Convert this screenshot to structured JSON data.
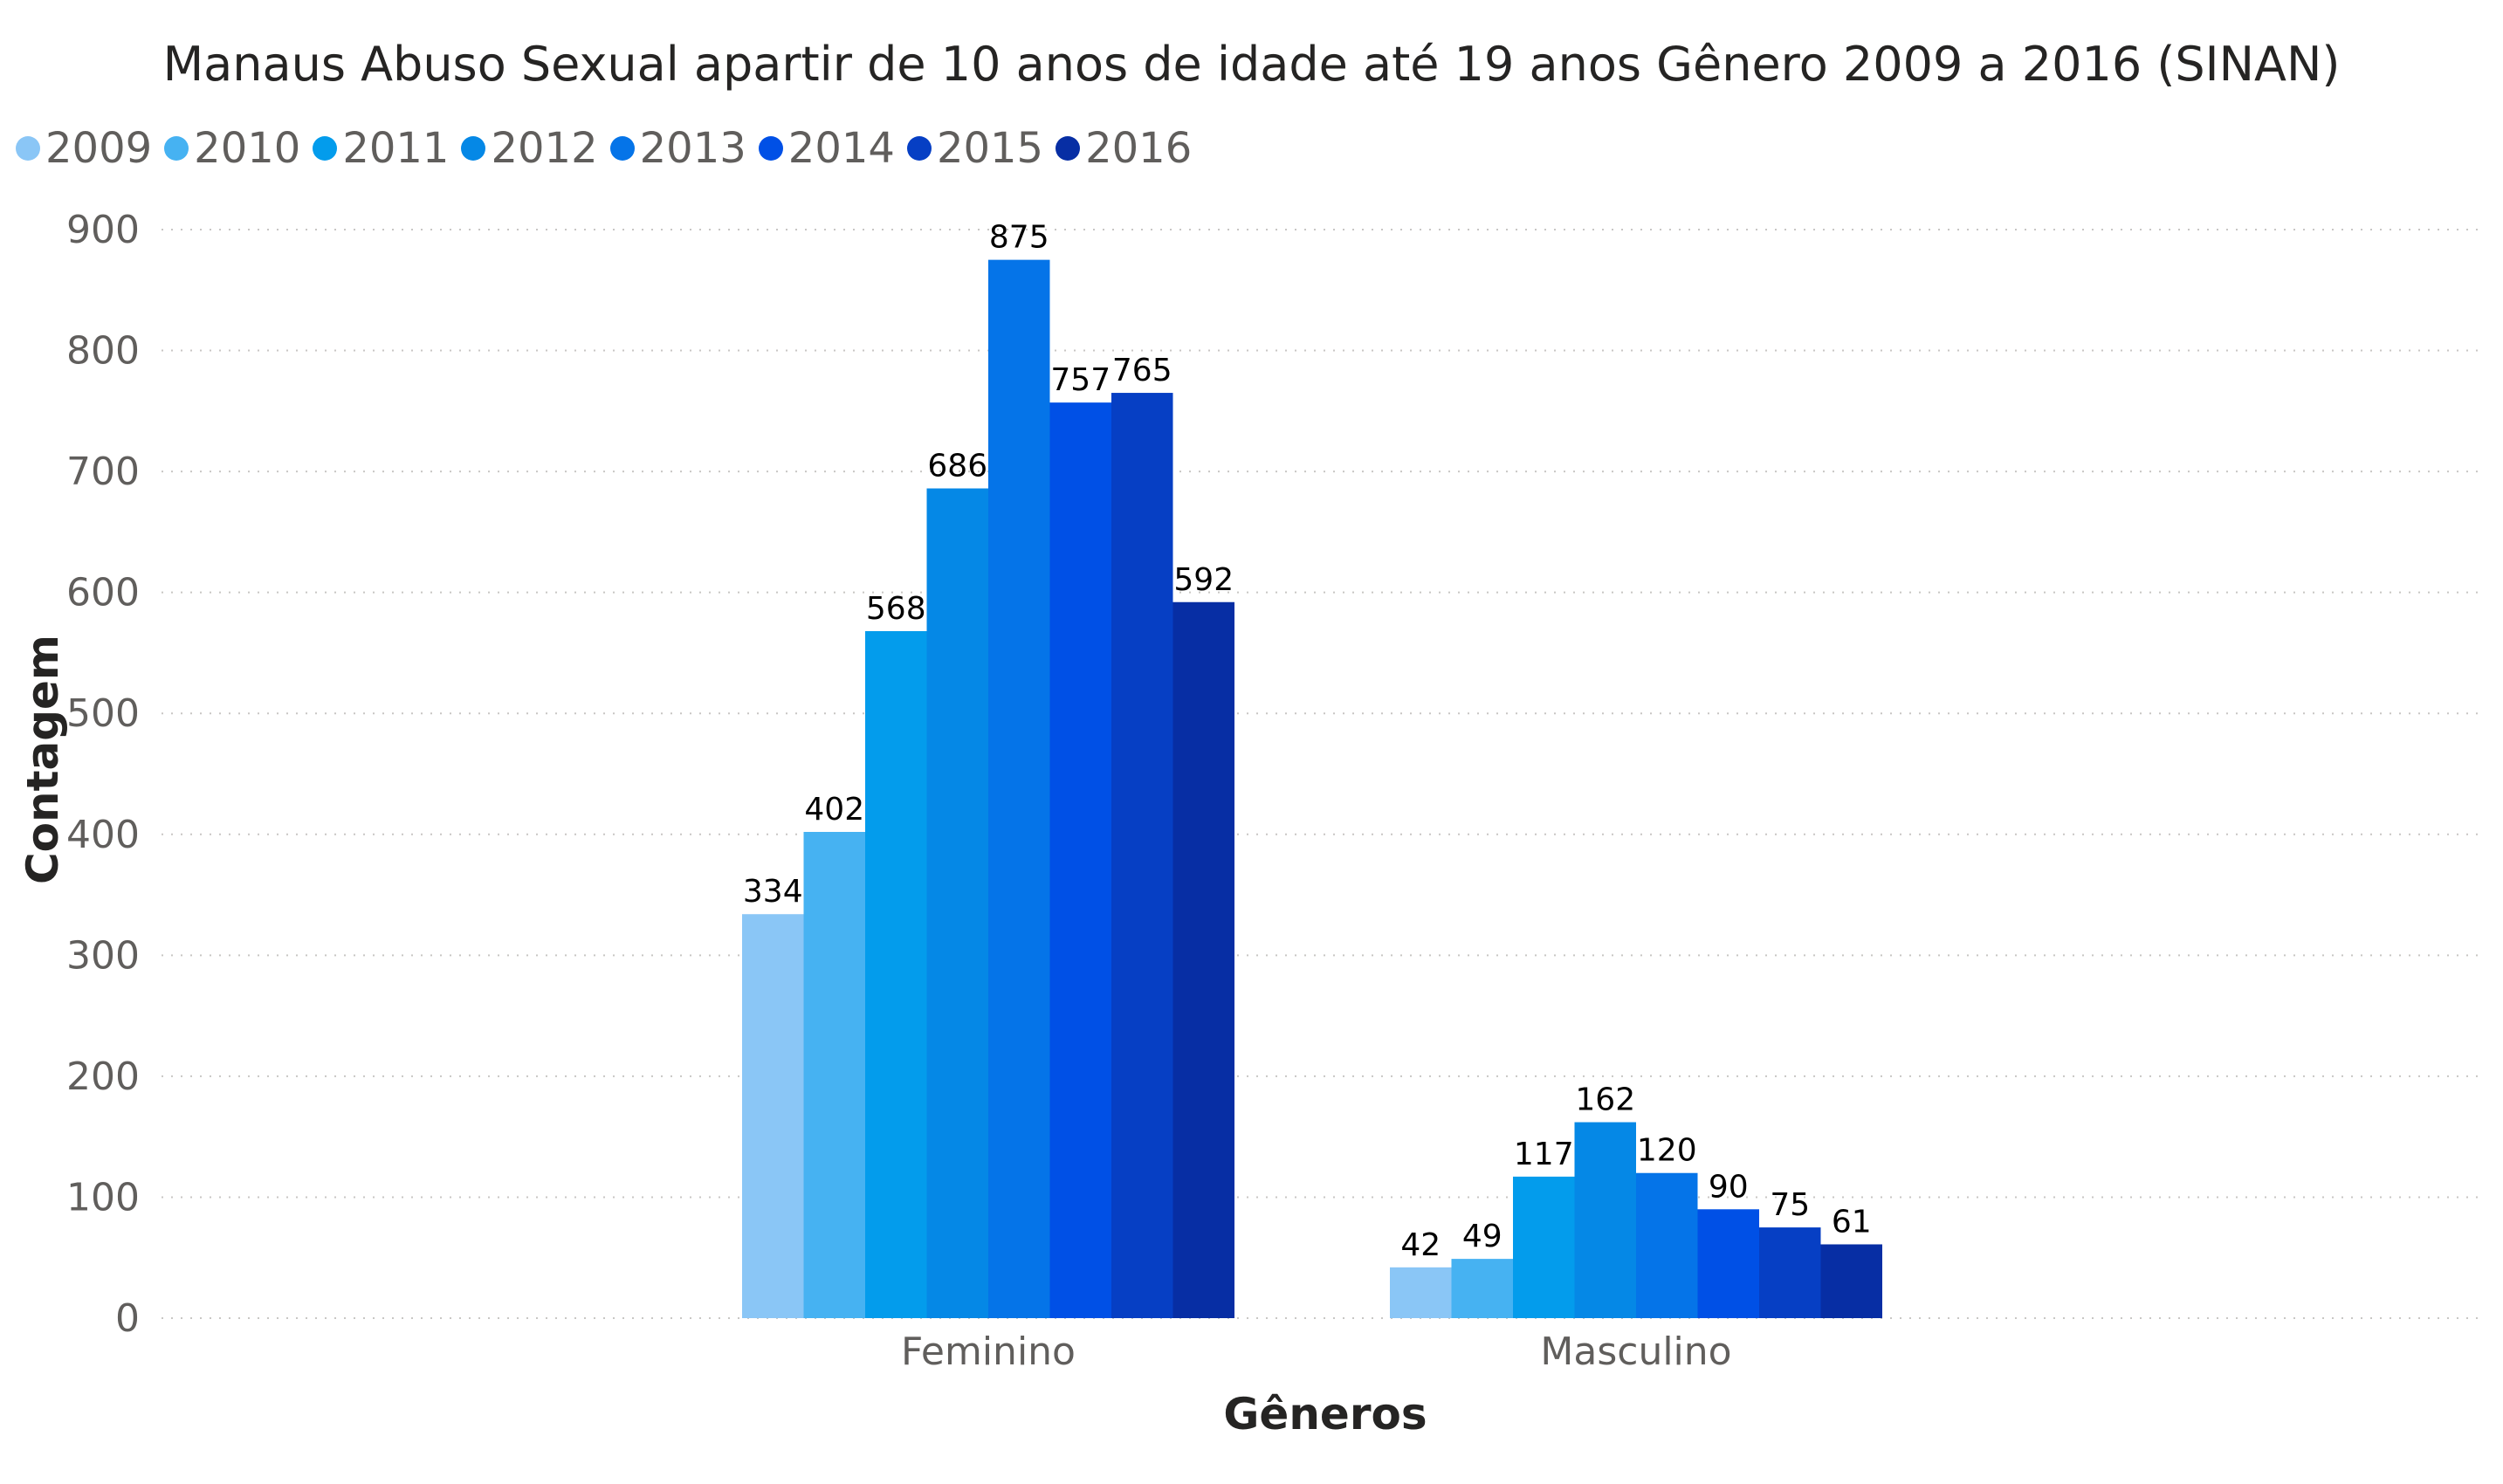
{
  "chart_data": {
    "type": "bar",
    "title": "Manaus Abuso Sexual apartir de 10 anos de idade até 19 anos Gênero 2009 a 2016 (SINAN)",
    "xlabel": "Gêneros",
    "ylabel": "Contagem",
    "categories": [
      "Feminino",
      "Masculino"
    ],
    "ylim": [
      0,
      900
    ],
    "yticks": [
      "0",
      "100",
      "200",
      "300",
      "400",
      "500",
      "600",
      "700",
      "800",
      "900"
    ],
    "grid": "horizontal dotted",
    "legend_position": "top-left",
    "series": [
      {
        "name": "2009",
        "color": "#8ac6f6",
        "values": [
          334,
          42
        ]
      },
      {
        "name": "2010",
        "color": "#46b2f2",
        "values": [
          402,
          49
        ]
      },
      {
        "name": "2011",
        "color": "#039cec",
        "values": [
          568,
          117
        ]
      },
      {
        "name": "2012",
        "color": "#0588e6",
        "values": [
          686,
          162
        ]
      },
      {
        "name": "2013",
        "color": "#0574e8",
        "values": [
          875,
          120
        ]
      },
      {
        "name": "2014",
        "color": "#0050e6",
        "values": [
          757,
          90
        ]
      },
      {
        "name": "2015",
        "color": "#063fc4",
        "values": [
          765,
          75
        ]
      },
      {
        "name": "2016",
        "color": "#072ea4",
        "values": [
          592,
          61
        ]
      }
    ]
  }
}
